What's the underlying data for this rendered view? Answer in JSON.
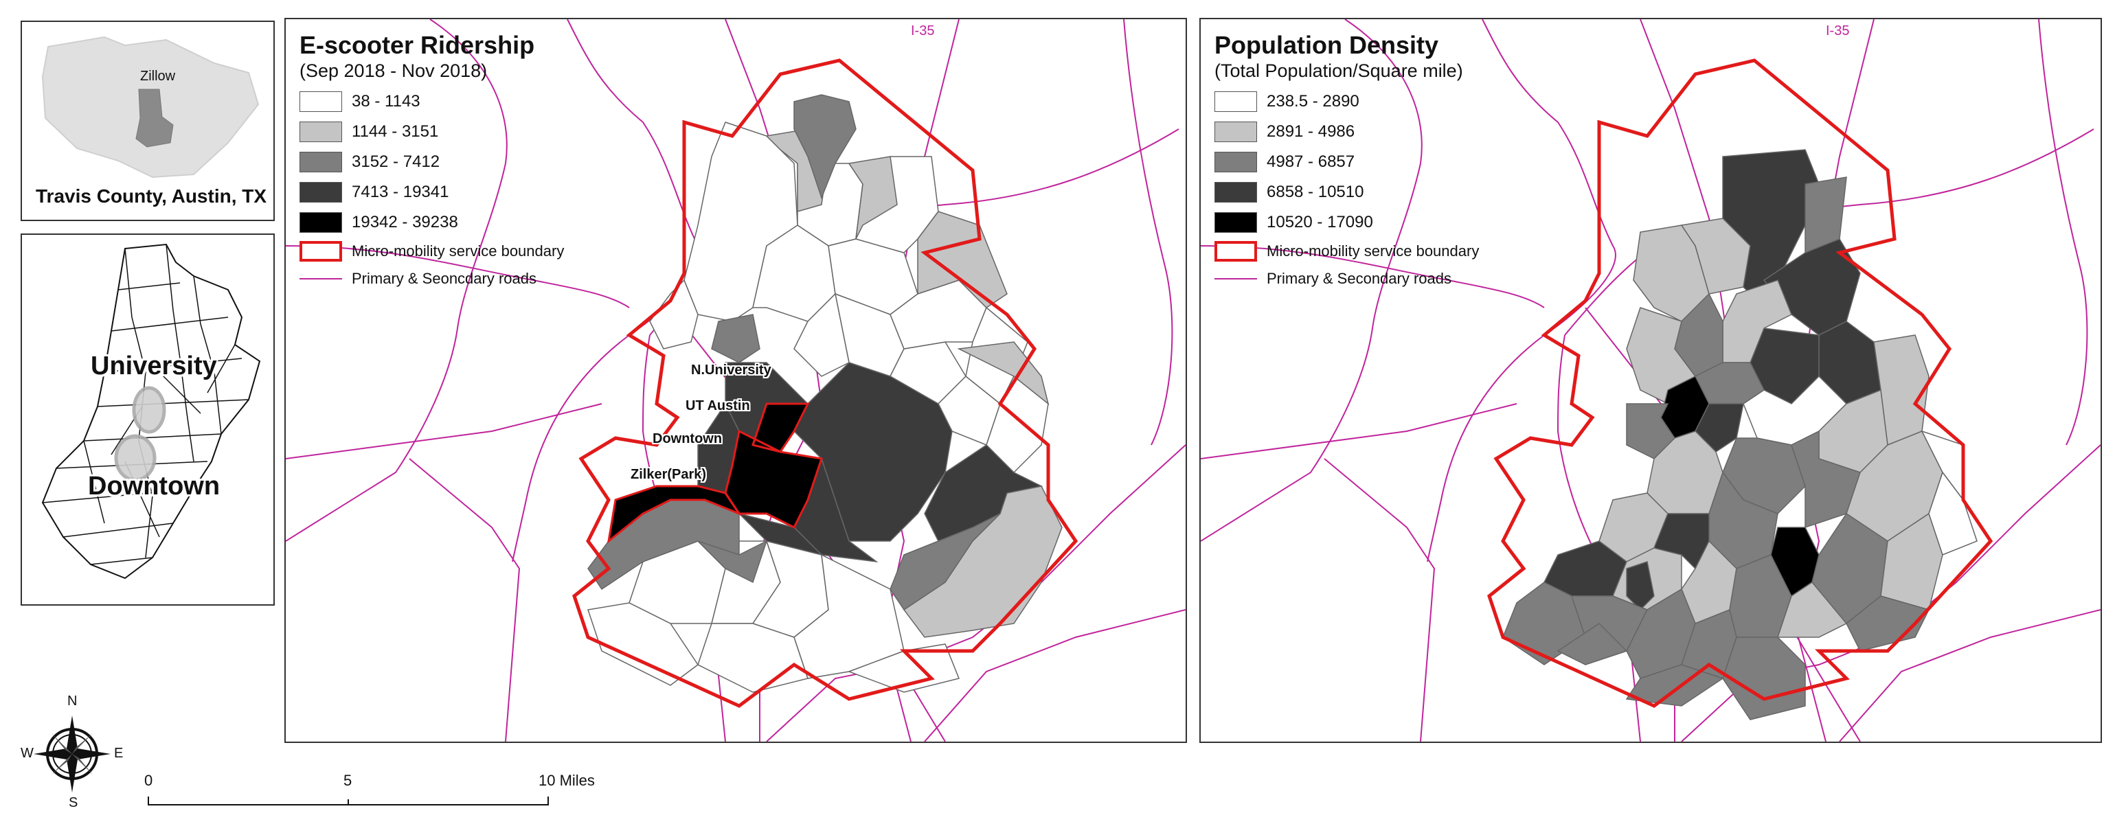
{
  "inset_county": {
    "caption": "Travis County, Austin, TX",
    "area_label": "Zillow"
  },
  "inset_city": {
    "label_university": "University",
    "label_downtown": "Downtown"
  },
  "left_map": {
    "title": "E-scooter Ridership",
    "subtitle": "(Sep 2018 - Nov 2018)",
    "road_label": "I-35",
    "legend": [
      {
        "label": "38 - 1143",
        "color": "#ffffff"
      },
      {
        "label": "1144 - 3151",
        "color": "#c4c4c4"
      },
      {
        "label": "3152 - 7412",
        "color": "#7e7e7e"
      },
      {
        "label": "7413 - 19341",
        "color": "#3b3b3b"
      },
      {
        "label": "19342 - 39238",
        "color": "#000000"
      }
    ],
    "boundary_label": "Micro-mobility service boundary",
    "roads_label": "Primary & Seoncdary roads",
    "places": {
      "n_university": "N.University",
      "ut_austin": "UT Austin",
      "downtown": "Downtown",
      "zilker": "Zilker(Park)"
    }
  },
  "right_map": {
    "title": "Population Density",
    "subtitle": "(Total Population/Square mile)",
    "road_label": "I-35",
    "legend": [
      {
        "label": "238.5 - 2890",
        "color": "#ffffff"
      },
      {
        "label": "2891 - 4986",
        "color": "#c4c4c4"
      },
      {
        "label": "4987 - 6857",
        "color": "#7e7e7e"
      },
      {
        "label": "6858 - 10510",
        "color": "#3b3b3b"
      },
      {
        "label": "10520 - 17090",
        "color": "#000000"
      }
    ],
    "boundary_label": "Micro-mobility service boundary",
    "roads_label": "Primary & Secondary roads"
  },
  "compass": {
    "n": "N",
    "s": "S",
    "e": "E",
    "w": "W"
  },
  "scalebar": {
    "t0": "0",
    "t5": "5",
    "t10": "10 Miles"
  },
  "colors": {
    "boundary": "#e21a1a",
    "roads": "#c0249c"
  }
}
